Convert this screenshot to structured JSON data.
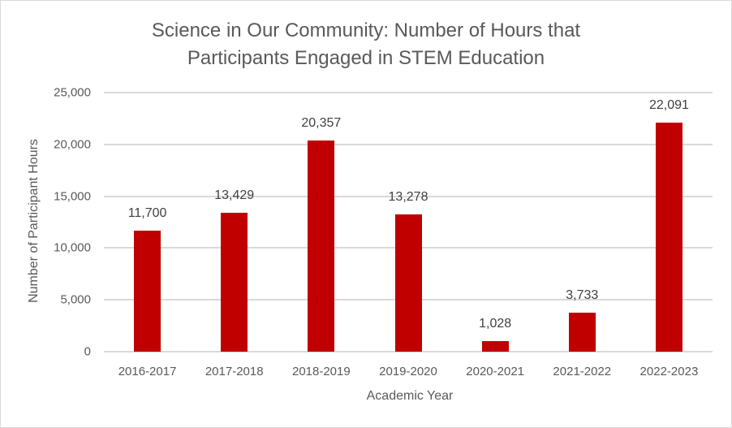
{
  "chart_data": {
    "type": "bar",
    "title_line1": "Science in Our Community: Number of Hours that",
    "title_line2": "Participants Engaged in STEM Education",
    "xlabel": "Academic Year",
    "ylabel": "Number of Participant Hours",
    "ylim": [
      0,
      25000
    ],
    "yticks": [
      "0",
      "5,000",
      "10,000",
      "15,000",
      "20,000",
      "25,000"
    ],
    "grid": true,
    "legend": "none",
    "bar_color": "#c00000",
    "categories": [
      "2016-2017",
      "2017-2018",
      "2018-2019",
      "2019-2020",
      "2020-2021",
      "2021-2022",
      "2022-2023"
    ],
    "values": [
      11700,
      13429,
      20357,
      13278,
      1028,
      3733,
      22091
    ],
    "data_labels": [
      "11,700",
      "13,429",
      "20,357",
      "13,278",
      "1,028",
      "3,733",
      "22,091"
    ]
  }
}
